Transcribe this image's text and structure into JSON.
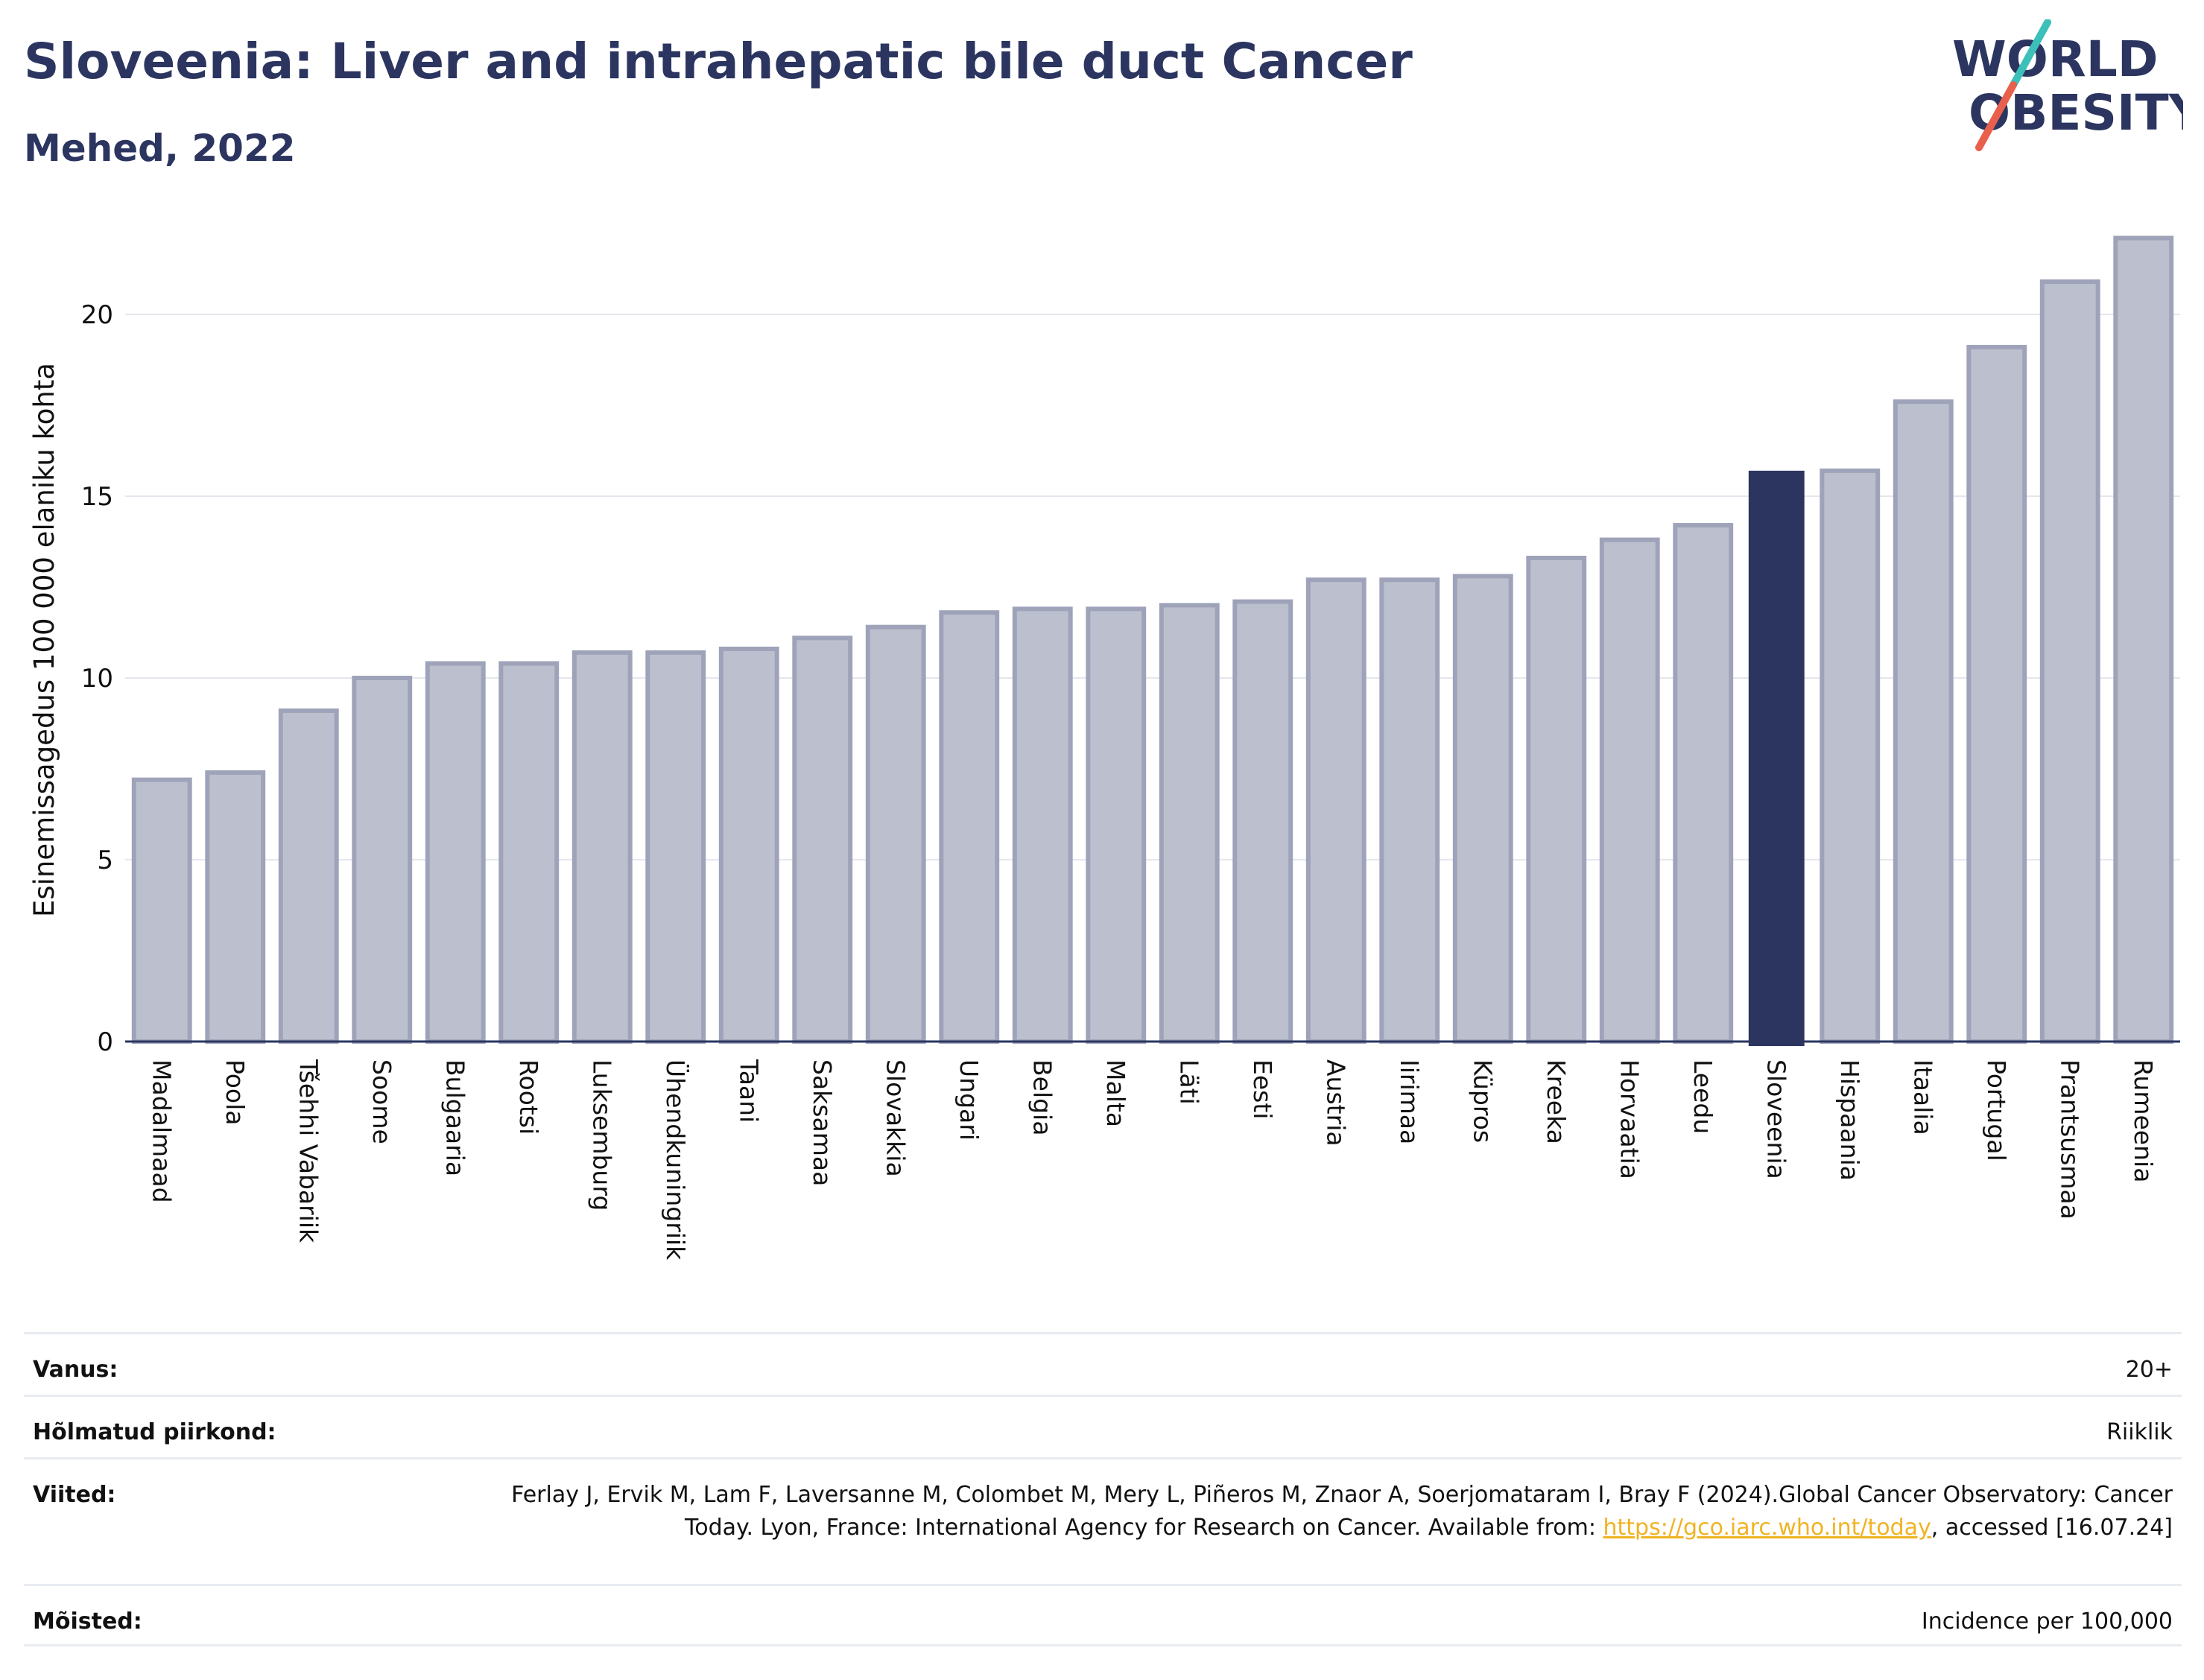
{
  "title": "Sloveenia: Liver and intrahepatic bile duct Cancer",
  "subtitle": "Mehed, 2022",
  "logo": {
    "line1": "WORLD",
    "line2": "OBESITY",
    "colors": {
      "text": "#2b3560",
      "accent_teal": "#3cc0b9",
      "accent_red": "#e8604c"
    }
  },
  "colors": {
    "bar": "#bcc0ce",
    "bar_border": "#9ea3b9",
    "highlight": "#2b3560",
    "grid": "#e6e7ee",
    "axis": "#2b3560"
  },
  "chart_data": {
    "type": "bar",
    "ylabel": "Esinemissagedus 100 000 elaniku kohta",
    "xlabel": "",
    "ylim": [
      0,
      22.5
    ],
    "yticks": [
      0,
      5,
      10,
      15,
      20
    ],
    "grid": true,
    "highlight": "Sloveenia",
    "categories": [
      "Madalmaad",
      "Poola",
      "Tšehhi Vabariik",
      "Soome",
      "Bulgaaria",
      "Rootsi",
      "Luksemburg",
      "Ühendkuningriik",
      "Taani",
      "Saksamaa",
      "Slovakkia",
      "Ungari",
      "Belgia",
      "Malta",
      "Läti",
      "Eesti",
      "Austria",
      "Iirimaa",
      "Küpros",
      "Kreeka",
      "Horvaatia",
      "Leedu",
      "Sloveenia",
      "Hispaania",
      "Itaalia",
      "Portugal",
      "Prantsusmaa",
      "Rumeenia"
    ],
    "values": [
      7.2,
      7.4,
      9.1,
      10.0,
      10.4,
      10.4,
      10.7,
      10.7,
      10.8,
      11.1,
      11.4,
      11.8,
      11.9,
      11.9,
      12.0,
      12.1,
      12.7,
      12.7,
      12.8,
      13.3,
      13.8,
      14.2,
      15.7,
      15.7,
      17.6,
      19.1,
      20.9,
      22.1
    ]
  },
  "meta": [
    {
      "label": "Vanus:",
      "value": "20+"
    },
    {
      "label": "Hõlmatud piirkond:",
      "value": "Riiklik"
    },
    {
      "label": "Viited:",
      "value_pre": "Ferlay J, Ervik M, Lam F, Laversanne M, Colombet M, Mery L, Piñeros M, Znaor A, Soerjomataram I, Bray F (2024).Global Cancer Observatory: Cancer Today. Lyon, France: International Agency for Research on Cancer. Available from: ",
      "link": "https://gco.iarc.who.int/today",
      "value_post": ", accessed [16.07.24]"
    },
    {
      "label": "Mõisted:",
      "value": "Incidence per 100,000"
    }
  ]
}
